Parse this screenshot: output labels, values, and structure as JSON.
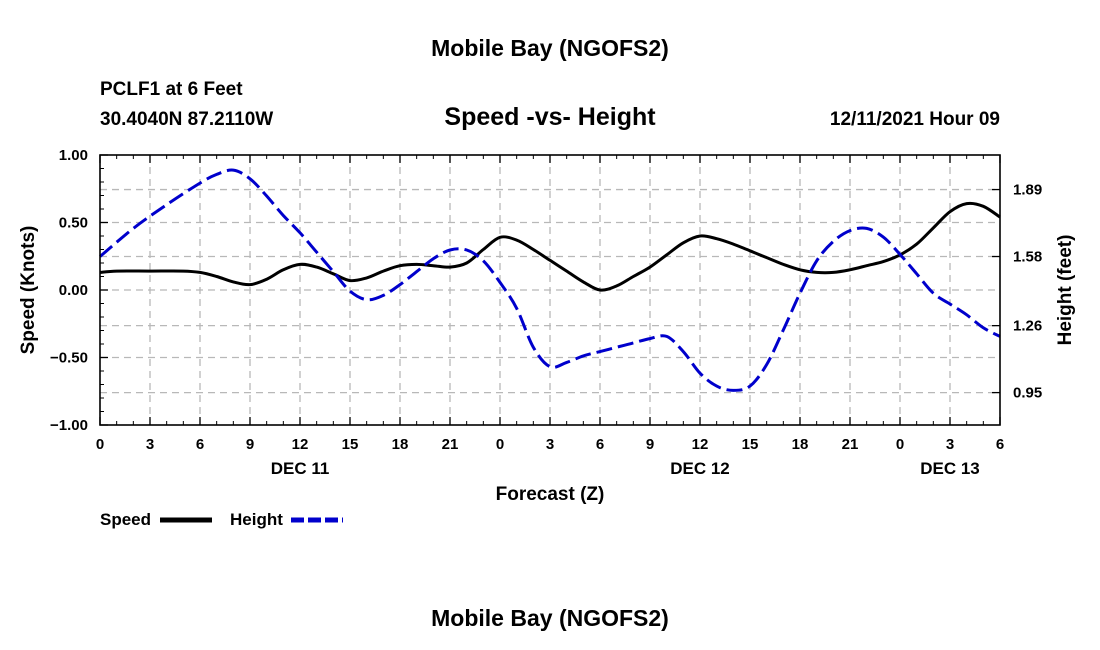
{
  "page_title": "Mobile Bay (NGOFS2)",
  "footer_title": "Mobile Bay (NGOFS2)",
  "station_line": "PCLF1 at 6 Feet",
  "coords_line": "30.4040N  87.2110W",
  "datetime_line": "12/11/2021 Hour 09",
  "chart_data": {
    "type": "line",
    "title": "Speed -vs- Height",
    "xlabel": "Forecast (Z)",
    "ylabel": "Speed (Knots)",
    "y2label": "Height (feet)",
    "xlim": [
      0,
      54
    ],
    "ylim": [
      -1.0,
      1.0
    ],
    "y2lim": [
      0.8,
      2.05
    ],
    "x_ticks": [
      0,
      3,
      6,
      9,
      12,
      15,
      18,
      21,
      24,
      27,
      30,
      33,
      36,
      39,
      42,
      45,
      48,
      51,
      54
    ],
    "x_tick_labels": [
      "0",
      "3",
      "6",
      "9",
      "12",
      "15",
      "18",
      "21",
      "0",
      "3",
      "6",
      "9",
      "12",
      "15",
      "18",
      "21",
      "0",
      "3",
      "6"
    ],
    "day_labels": [
      {
        "x": 12,
        "label": "DEC 11"
      },
      {
        "x": 36,
        "label": "DEC 12"
      },
      {
        "x": 51,
        "label": "DEC 13"
      }
    ],
    "y_ticks": [
      1.0,
      0.5,
      0.0,
      -0.5,
      -1.0
    ],
    "y_tick_labels": [
      "1.00",
      "0.50",
      "0.00",
      "−0.50",
      "−1.00"
    ],
    "y2_ticks": [
      1.89,
      1.58,
      1.26,
      0.95
    ],
    "y2_tick_labels": [
      "1.89",
      "1.58",
      "1.26",
      "0.95"
    ],
    "series": [
      {
        "name": "Speed",
        "axis": "left",
        "color": "#000000",
        "style": "solid",
        "x": [
          0,
          1,
          3,
          5,
          6,
          7,
          8,
          9,
          10,
          11,
          12,
          13,
          14,
          15,
          16,
          17,
          18,
          19,
          20,
          21,
          22,
          23,
          24,
          25,
          26,
          27,
          28,
          29,
          30,
          31,
          32,
          33,
          34,
          35,
          36,
          37,
          38,
          39,
          40,
          41,
          42,
          43,
          44,
          45,
          46,
          47,
          48,
          49,
          50,
          51,
          52,
          53,
          54
        ],
        "values": [
          0.13,
          0.14,
          0.14,
          0.14,
          0.13,
          0.1,
          0.06,
          0.04,
          0.08,
          0.15,
          0.19,
          0.17,
          0.12,
          0.07,
          0.09,
          0.14,
          0.18,
          0.19,
          0.18,
          0.17,
          0.2,
          0.3,
          0.39,
          0.37,
          0.3,
          0.22,
          0.14,
          0.06,
          0.0,
          0.03,
          0.1,
          0.17,
          0.26,
          0.35,
          0.4,
          0.38,
          0.34,
          0.29,
          0.24,
          0.19,
          0.15,
          0.13,
          0.13,
          0.15,
          0.18,
          0.21,
          0.26,
          0.34,
          0.46,
          0.58,
          0.64,
          0.62,
          0.54
        ]
      },
      {
        "name": "Height",
        "axis": "right",
        "color": "#0000cc",
        "style": "dashed",
        "x": [
          0,
          2,
          4,
          6,
          7,
          8,
          9,
          10,
          11,
          12,
          13,
          14,
          15,
          16,
          17,
          18,
          19,
          20,
          21,
          22,
          23,
          24,
          25,
          26,
          27,
          28,
          29,
          30,
          31,
          32,
          33,
          34,
          35,
          36,
          37,
          38,
          39,
          40,
          41,
          42,
          43,
          44,
          45,
          46,
          47,
          48,
          49,
          50,
          51,
          52,
          53,
          54
        ],
        "values": [
          1.58,
          1.71,
          1.82,
          1.92,
          1.96,
          1.98,
          1.94,
          1.86,
          1.77,
          1.69,
          1.6,
          1.51,
          1.42,
          1.38,
          1.4,
          1.45,
          1.51,
          1.57,
          1.61,
          1.61,
          1.56,
          1.46,
          1.34,
          1.16,
          1.07,
          1.09,
          1.12,
          1.14,
          1.16,
          1.18,
          1.2,
          1.21,
          1.14,
          1.04,
          0.98,
          0.96,
          0.98,
          1.08,
          1.24,
          1.41,
          1.56,
          1.65,
          1.7,
          1.71,
          1.67,
          1.59,
          1.5,
          1.41,
          1.36,
          1.31,
          1.25,
          1.21
        ]
      }
    ],
    "legend": [
      {
        "label": "Speed",
        "color": "#000000",
        "style": "solid"
      },
      {
        "label": "Height",
        "color": "#0000cc",
        "style": "dashed"
      }
    ],
    "grid": true,
    "legend_position": "bottom-left"
  }
}
